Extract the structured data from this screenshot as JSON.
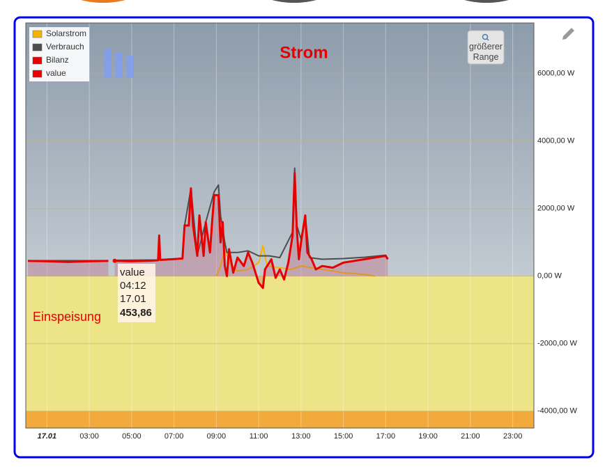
{
  "chart_data": {
    "type": "line",
    "title": "Strom",
    "annotation": "Einspeisung",
    "button": "größerer Range",
    "legend": "top-left",
    "grid": true,
    "xlim": [
      0,
      24
    ],
    "xticks": [
      {
        "value": 1,
        "label": "17.01"
      },
      {
        "value": 3,
        "label": "03:00"
      },
      {
        "value": 5,
        "label": "05:00"
      },
      {
        "value": 7,
        "label": "07:00"
      },
      {
        "value": 9,
        "label": "09:00"
      },
      {
        "value": 11,
        "label": "11:00"
      },
      {
        "value": 13,
        "label": "13:00"
      },
      {
        "value": 15,
        "label": "15:00"
      },
      {
        "value": 17,
        "label": "17:00"
      },
      {
        "value": 19,
        "label": "19:00"
      },
      {
        "value": 21,
        "label": "21:00"
      },
      {
        "value": 23,
        "label": "23:00"
      }
    ],
    "ylim": [
      -4500,
      7500
    ],
    "yticks": [
      {
        "value": -4000,
        "label": "-4000,00 W"
      },
      {
        "value": -2000,
        "label": "-2000,00 W"
      },
      {
        "value": 0,
        "label": "0,00 W"
      },
      {
        "value": 2000,
        "label": "2000,00 W"
      },
      {
        "value": 4000,
        "label": "4000,00 W"
      },
      {
        "value": 6000,
        "label": "6000,00 W"
      }
    ],
    "bands": [
      {
        "from": -4000,
        "to": 0,
        "color": "#ece487"
      },
      {
        "from": -4500,
        "to": -4000,
        "color": "#f3aa3c"
      }
    ],
    "tooltip": {
      "time": "04:12",
      "date": "17.01"
    },
    "series": [
      {
        "name": "Solarstrom",
        "color": "#f5b400",
        "x": [
          9,
          9.2,
          9.4,
          9.6,
          10,
          10.5,
          11,
          11.2,
          11.4,
          12,
          12.5,
          13,
          13.5,
          14,
          14.5,
          15,
          16,
          16.5
        ],
        "values": [
          0,
          300,
          800,
          400,
          150,
          200,
          400,
          900,
          300,
          250,
          200,
          300,
          250,
          200,
          150,
          100,
          50,
          0
        ]
      },
      {
        "name": "Verbrauch",
        "color": "#4d4d4d",
        "x": [
          0.1,
          3.9,
          4,
          4.2,
          6.25,
          6.3,
          6.35,
          7.4,
          7.5,
          7.8,
          8.1,
          8.5,
          8.9,
          9.1,
          9.2,
          9.4,
          9.5,
          10,
          10.5,
          11,
          11.5,
          12,
          12.6,
          12.7,
          12.8,
          13,
          13.2,
          13.4,
          14,
          15,
          16,
          17,
          17.1
        ],
        "values": [
          460,
          460,
          null,
          470,
          480,
          1220,
          490,
          530,
          1500,
          2600,
          620,
          1600,
          2500,
          2700,
          1800,
          1000,
          700,
          700,
          750,
          600,
          600,
          550,
          1300,
          3200,
          1500,
          1100,
          1800,
          550,
          500,
          520,
          560,
          620,
          520
        ]
      },
      {
        "name": "Bilanz",
        "color": "#e60000",
        "x": [
          0.1,
          1,
          2,
          3,
          3.9,
          4,
          4.2,
          5,
          6,
          6.25,
          6.3,
          6.35,
          7.4,
          7.5,
          7.7,
          7.8,
          7.9,
          8.1,
          8.2,
          8.4,
          8.5,
          8.7,
          8.8,
          8.9,
          9.1,
          9.2,
          9.3,
          9.4,
          9.5,
          9.6,
          9.8,
          10,
          10.3,
          10.5,
          10.7,
          11,
          11.2,
          11.3,
          11.6,
          11.8,
          12,
          12.2,
          12.4,
          12.6,
          12.7,
          12.8,
          12.9,
          13,
          13.2,
          13.3,
          13.5,
          13.7,
          14,
          14.5,
          15,
          15.5,
          16,
          16.5,
          17,
          17.1
        ],
        "values": [
          450,
          440,
          420,
          440,
          450,
          null,
          454,
          440,
          460,
          470,
          1200,
          480,
          520,
          1500,
          1500,
          2600,
          1500,
          600,
          1800,
          600,
          1600,
          700,
          1600,
          2400,
          2400,
          1000,
          1600,
          300,
          0,
          800,
          100,
          550,
          300,
          700,
          400,
          -200,
          -350,
          200,
          500,
          -50,
          200,
          -100,
          400,
          1200,
          3050,
          1400,
          500,
          1000,
          1800,
          700,
          500,
          200,
          300,
          250,
          400,
          450,
          500,
          550,
          600,
          500
        ]
      },
      {
        "name": "value",
        "color": "#e60000",
        "x": [
          4.2
        ],
        "values": [
          453.86
        ],
        "value_labels": [
          "453,86"
        ]
      }
    ]
  }
}
